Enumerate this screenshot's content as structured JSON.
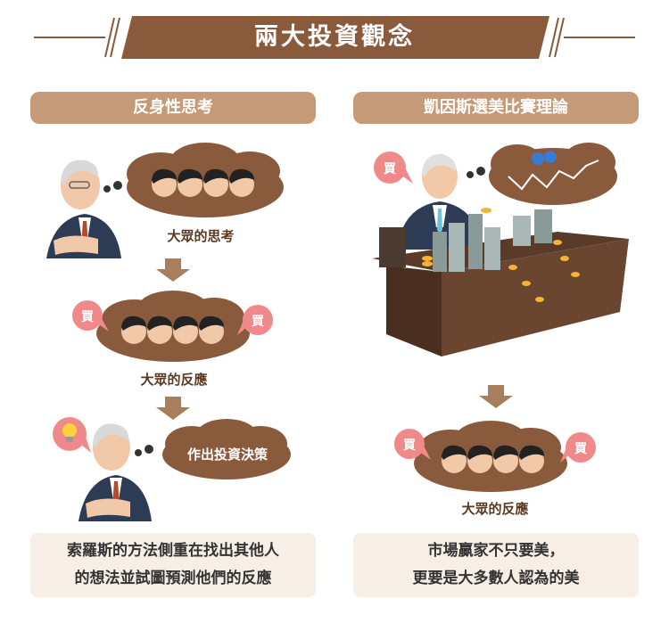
{
  "title": "兩大投資觀念",
  "left": {
    "heading": "反身性思考",
    "crowd_thinking_label": "大眾的思考",
    "crowd_reaction_label": "大眾的反應",
    "decision_label": "作出投資決策",
    "buy_label": "買",
    "summary_lines": [
      "索羅斯的方法側重在找出其他人",
      "的想法並試圖預測他們的反應"
    ]
  },
  "right": {
    "heading": "凱因斯選美比賽理論",
    "buy_label": "買",
    "crowd_reaction_label": "大眾的反應",
    "summary_lines": [
      "市場贏家不只要美，",
      "更要是大多數人認為的美"
    ]
  },
  "colors": {
    "banner": "#8a5a3c",
    "pill": "#c49a78",
    "cloud": "#8a5a3c",
    "arrow": "#a87f5c",
    "buy_bubble": "#f08a8a",
    "note_bg": "#f7eee6"
  }
}
